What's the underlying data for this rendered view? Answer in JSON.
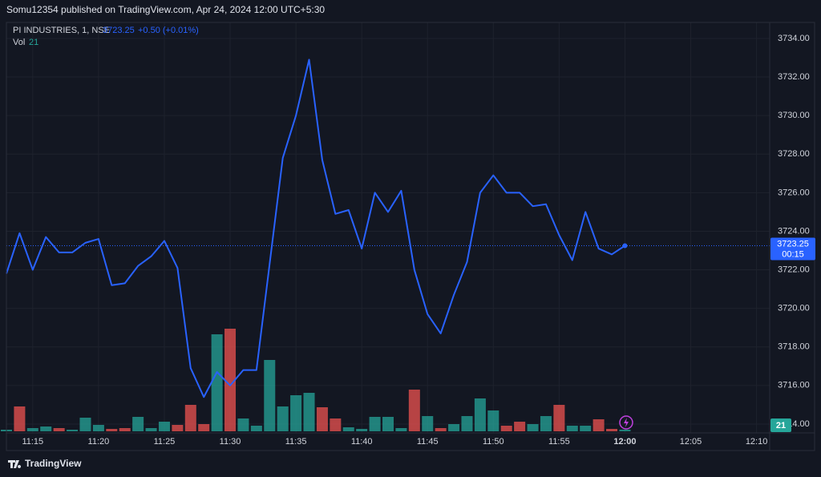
{
  "header": {
    "publisher": "Somu12354 published on TradingView.com, Apr 24, 2024 12:00 UTC+5:30"
  },
  "legend": {
    "symbol": "PI INDUSTRIES, 1, NSE",
    "price": "3723.25",
    "change": "+0.50 (+0.01%)",
    "vol_label": "Vol",
    "vol_value": "21"
  },
  "price_tag": {
    "price": "3723.25",
    "countdown": "00:15"
  },
  "footer": {
    "brand": "TradingView"
  },
  "chart_data": {
    "type": "line",
    "x": [
      "11:13",
      "11:14",
      "11:15",
      "11:16",
      "11:17",
      "11:18",
      "11:19",
      "11:20",
      "11:21",
      "11:22",
      "11:23",
      "11:24",
      "11:25",
      "11:26",
      "11:27",
      "11:28",
      "11:29",
      "11:30",
      "11:31",
      "11:32",
      "11:33",
      "11:34",
      "11:35",
      "11:36",
      "11:37",
      "11:38",
      "11:39",
      "11:40",
      "11:41",
      "11:42",
      "11:43",
      "11:44",
      "11:45",
      "11:46",
      "11:47",
      "11:48",
      "11:49",
      "11:50",
      "11:51",
      "11:52",
      "11:53",
      "11:54",
      "11:55",
      "11:56",
      "11:57",
      "11:58",
      "11:59",
      "12:00"
    ],
    "series": [
      {
        "color": "#2962ff",
        "values": [
          3721.8,
          3723.9,
          3722.0,
          3723.7,
          3722.9,
          3722.9,
          3723.4,
          3723.6,
          3721.2,
          3721.3,
          3722.2,
          3722.7,
          3723.5,
          3722.1,
          3716.9,
          3715.4,
          3716.7,
          3716.0,
          3716.8,
          3716.8,
          3722.3,
          3727.8,
          3730.0,
          3732.9,
          3727.7,
          3724.9,
          3725.1,
          3723.1,
          3726.0,
          3725.0,
          3726.1,
          3722.0,
          3719.7,
          3718.7,
          3720.7,
          3722.4,
          3726.0,
          3726.9,
          3726.0,
          3726.0,
          3725.3,
          3725.4,
          3723.8,
          3722.5,
          3725.0,
          3723.1,
          3722.8,
          3723.25
        ]
      }
    ],
    "volume": {
      "values": [
        20,
        310,
        40,
        60,
        40,
        20,
        170,
        80,
        30,
        40,
        180,
        40,
        120,
        80,
        330,
        90,
        1210,
        1280,
        160,
        70,
        890,
        310,
        450,
        480,
        300,
        160,
        50,
        30,
        180,
        180,
        40,
        520,
        190,
        40,
        90,
        190,
        410,
        260,
        70,
        120,
        90,
        190,
        330,
        70,
        70,
        150,
        30,
        21
      ],
      "colors": [
        "#26a69a",
        "#ef5350",
        "#26a69a",
        "#26a69a",
        "#ef5350",
        "#26a69a",
        "#26a69a",
        "#26a69a",
        "#ef5350",
        "#ef5350",
        "#26a69a",
        "#26a69a",
        "#26a69a",
        "#ef5350",
        "#ef5350",
        "#ef5350",
        "#26a69a",
        "#ef5350",
        "#26a69a",
        "#26a69a",
        "#26a69a",
        "#26a69a",
        "#26a69a",
        "#26a69a",
        "#ef5350",
        "#ef5350",
        "#26a69a",
        "#26a69a",
        "#26a69a",
        "#26a69a",
        "#26a69a",
        "#ef5350",
        "#26a69a",
        "#ef5350",
        "#26a69a",
        "#26a69a",
        "#26a69a",
        "#26a69a",
        "#ef5350",
        "#ef5350",
        "#26a69a",
        "#26a69a",
        "#ef5350",
        "#26a69a",
        "#26a69a",
        "#ef5350",
        "#ef5350",
        "#26a69a"
      ]
    },
    "xlim": [
      "11:13",
      "12:11"
    ],
    "xticks": [
      "11:15",
      "11:20",
      "11:25",
      "11:30",
      "11:35",
      "11:40",
      "11:45",
      "11:50",
      "11:55",
      "12:00",
      "12:05",
      "12:10"
    ],
    "ylim": [
      3713.54,
      3734.83
    ],
    "yticks": [
      {
        "value": 3714,
        "label": "3714.00"
      },
      {
        "value": 3716,
        "label": "3716.00"
      },
      {
        "value": 3718,
        "label": "3718.00"
      },
      {
        "value": 3720,
        "label": "3720.00"
      },
      {
        "value": 3722,
        "label": "3722.00"
      },
      {
        "value": 3724,
        "label": "3724.00"
      },
      {
        "value": 3726,
        "label": "3726.00"
      },
      {
        "value": 3728,
        "label": "3728.00"
      },
      {
        "value": 3730,
        "label": "3730.00"
      },
      {
        "value": 3732,
        "label": "3732.00"
      },
      {
        "value": 3734,
        "label": "3734.00"
      }
    ],
    "grid": true
  }
}
